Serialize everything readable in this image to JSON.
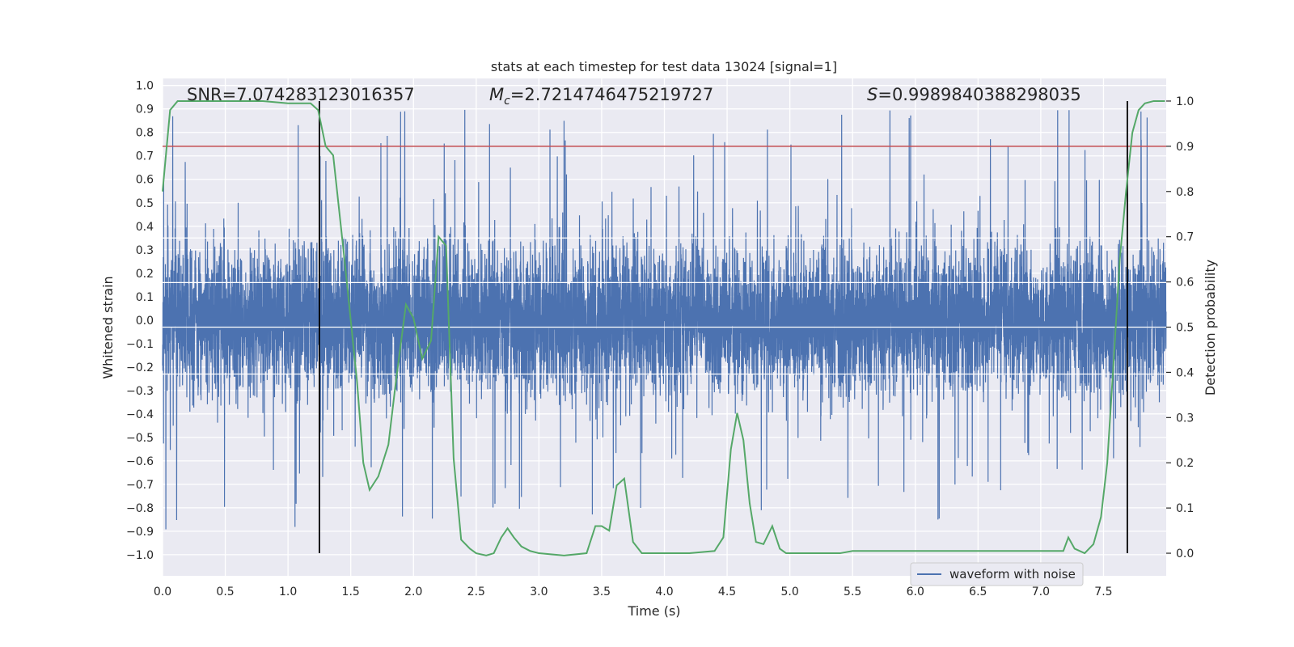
{
  "chart_data": {
    "type": "line",
    "title": "stats at each timestep for test data 13024 [signal=1]",
    "xlabel": "Time (s)",
    "ylabel_left": "Whitened strain",
    "ylabel_right": "Detection probability",
    "xlim": [
      0.0,
      8.0
    ],
    "ylim_left": [
      -1.09,
      1.03
    ],
    "ylim_right": [
      -0.05,
      1.05
    ],
    "xticks": [
      "0.0",
      "0.5",
      "1.0",
      "1.5",
      "2.0",
      "2.5",
      "3.0",
      "3.5",
      "4.0",
      "4.5",
      "5.0",
      "5.5",
      "6.0",
      "6.5",
      "7.0",
      "7.5"
    ],
    "yticks_left": [
      "-1.0",
      "-0.9",
      "-0.8",
      "-0.7",
      "-0.6",
      "-0.5",
      "-0.4",
      "-0.3",
      "-0.2",
      "-0.1",
      "0.0",
      "0.1",
      "0.2",
      "0.3",
      "0.4",
      "0.5",
      "0.6",
      "0.7",
      "0.8",
      "0.9",
      "1.0"
    ],
    "yticks_right": [
      "0.0",
      "0.1",
      "0.2",
      "0.3",
      "0.4",
      "0.5",
      "0.6",
      "0.7",
      "0.8",
      "0.9",
      "1.0"
    ],
    "annotations": {
      "snr": "SNR=7.074283123016357",
      "mc_symbol": "M",
      "mc_sub": "c",
      "mc_value": "=2.7214746475219727",
      "s_symbol": "S",
      "s_value": "=0.9989840388298035"
    },
    "legend": [
      "waveform with noise"
    ],
    "threshold": 0.9,
    "event_lines_x": [
      1.25,
      7.69
    ],
    "waveform": {
      "name": "waveform with noise",
      "samples": 8192,
      "seed": 13024,
      "core_amplitude": 0.28,
      "spike_max": 0.94,
      "spike_min": -1.0,
      "color": "#4c72b0"
    },
    "probability": {
      "name": "detection probability",
      "color": "#55a868",
      "x": [
        0.0,
        0.06,
        0.12,
        0.2,
        0.4,
        0.6,
        0.8,
        1.0,
        1.1,
        1.18,
        1.24,
        1.3,
        1.36,
        1.45,
        1.55,
        1.6,
        1.65,
        1.72,
        1.8,
        1.86,
        1.94,
        2.0,
        2.07,
        2.14,
        2.2,
        2.26,
        2.32,
        2.38,
        2.45,
        2.5,
        2.58,
        2.64,
        2.7,
        2.75,
        2.8,
        2.86,
        2.93,
        3.0,
        3.2,
        3.38,
        3.45,
        3.5,
        3.56,
        3.62,
        3.68,
        3.75,
        3.82,
        3.88,
        3.95,
        4.05,
        4.2,
        4.4,
        4.47,
        4.53,
        4.58,
        4.63,
        4.68,
        4.73,
        4.79,
        4.86,
        4.92,
        4.97,
        5.05,
        5.2,
        5.4,
        5.5,
        5.6,
        5.7,
        5.8,
        6.0,
        6.2,
        6.4,
        6.6,
        6.8,
        7.0,
        7.18,
        7.22,
        7.27,
        7.35,
        7.42,
        7.48,
        7.53,
        7.58,
        7.63,
        7.68,
        7.73,
        7.78,
        7.83,
        7.9,
        7.99
      ],
      "y": [
        0.8,
        0.98,
        1.0,
        1.0,
        1.0,
        1.0,
        1.0,
        0.995,
        0.995,
        0.995,
        0.98,
        0.9,
        0.88,
        0.65,
        0.38,
        0.2,
        0.14,
        0.17,
        0.24,
        0.38,
        0.55,
        0.52,
        0.43,
        0.47,
        0.7,
        0.68,
        0.21,
        0.03,
        0.01,
        0.0,
        -0.005,
        0.0,
        0.035,
        0.055,
        0.035,
        0.015,
        0.005,
        0.0,
        -0.005,
        0.0,
        0.06,
        0.06,
        0.05,
        0.15,
        0.165,
        0.025,
        0.0,
        0.0,
        0.0,
        0.0,
        0.0,
        0.005,
        0.035,
        0.23,
        0.31,
        0.25,
        0.11,
        0.025,
        0.02,
        0.06,
        0.01,
        0.0,
        0.0,
        0.0,
        0.0,
        0.005,
        0.005,
        0.005,
        0.005,
        0.005,
        0.005,
        0.005,
        0.005,
        0.005,
        0.005,
        0.005,
        0.035,
        0.01,
        0.0,
        0.02,
        0.08,
        0.2,
        0.42,
        0.65,
        0.8,
        0.93,
        0.98,
        0.995,
        1.0,
        1.0
      ]
    },
    "styling": {
      "plot_bg": "#eaeaf2",
      "grid": "#ffffff",
      "threshold_color": "#c44e52",
      "event_line_color": "#000000"
    }
  }
}
